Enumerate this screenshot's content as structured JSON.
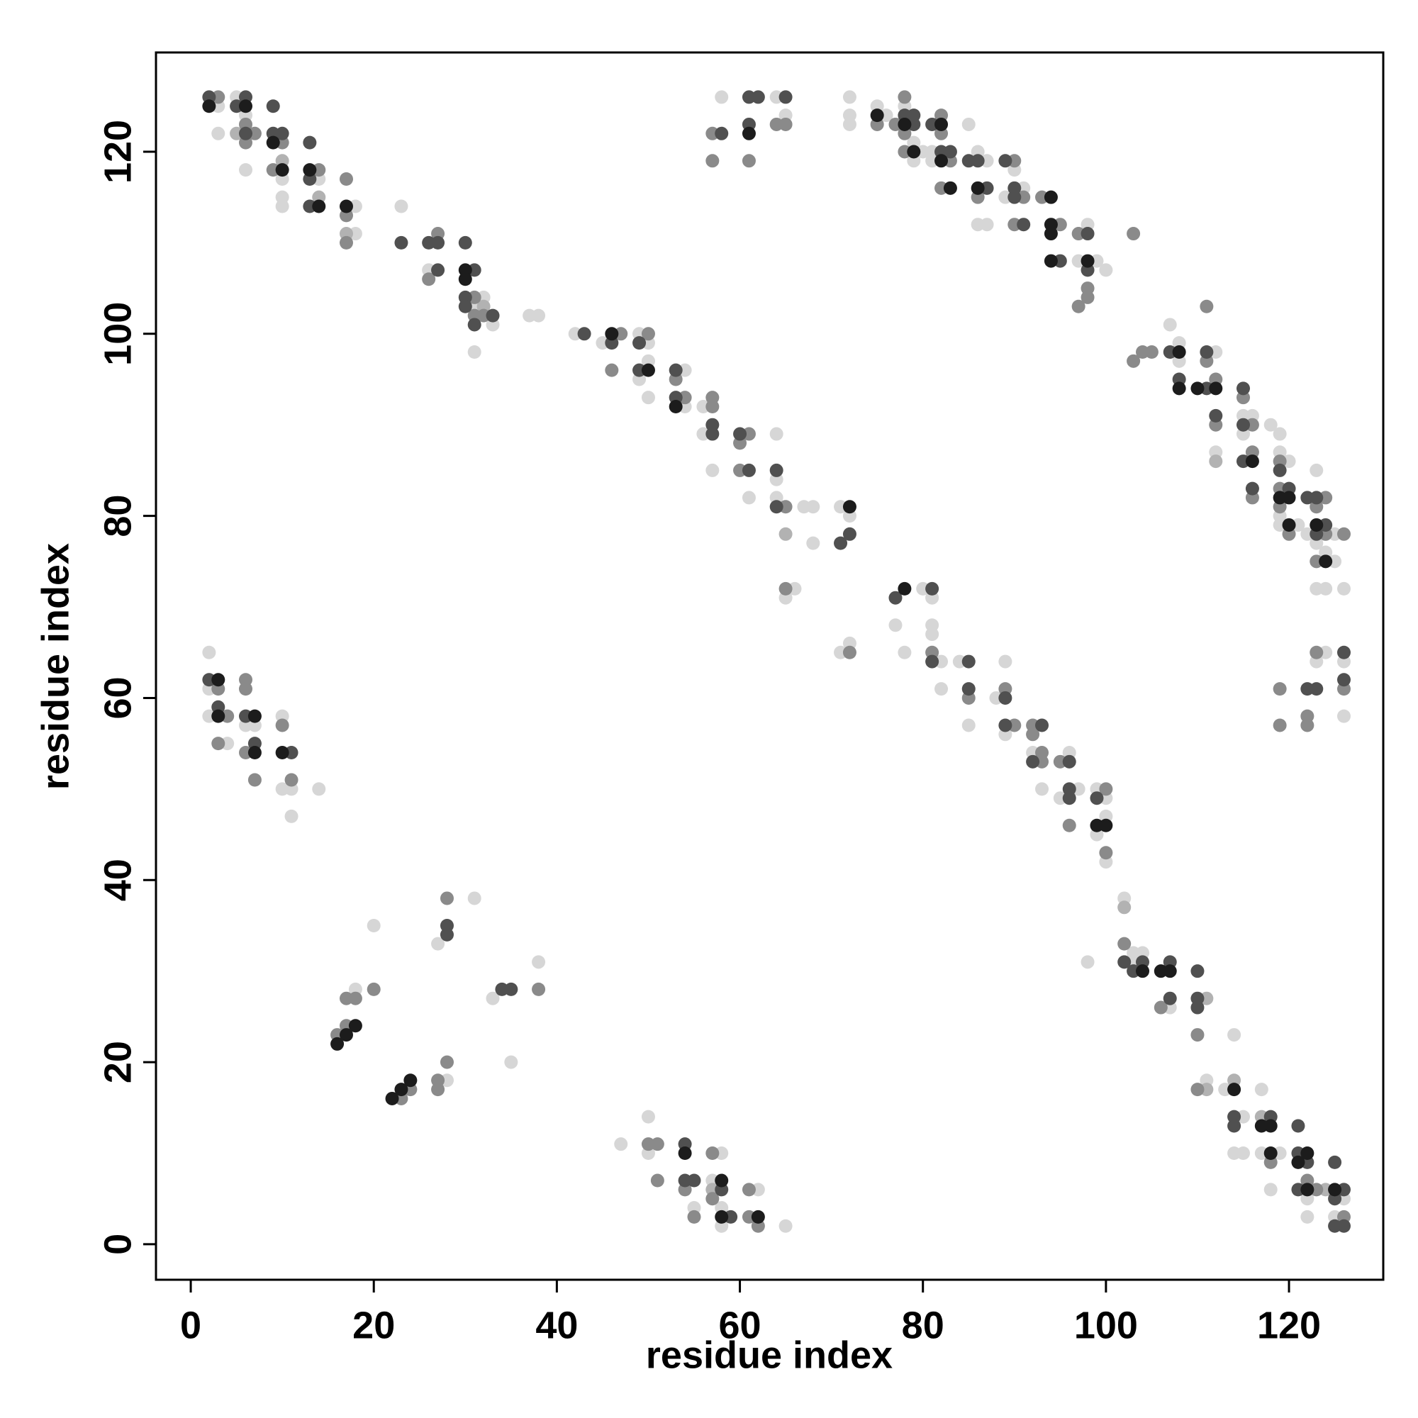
{
  "chart_data": {
    "type": "scatter",
    "xlabel": "residue index",
    "ylabel": "residue index",
    "xlim": [
      -3.8,
      130.3
    ],
    "ylim": [
      -3.9,
      130.9
    ],
    "xticks": [
      0,
      20,
      40,
      60,
      80,
      100,
      120
    ],
    "yticks": [
      0,
      20,
      40,
      60,
      80,
      100,
      120
    ],
    "grid": false,
    "series": [
      {
        "color": "#d6d6d6",
        "x": [
          3,
          3,
          5,
          6,
          6,
          10,
          10,
          10,
          14,
          18,
          18,
          23,
          26,
          31,
          31,
          32,
          33,
          37,
          38,
          42,
          45,
          49,
          49,
          50,
          50,
          50,
          54,
          54,
          56,
          56,
          57,
          61,
          64,
          64,
          64,
          65,
          66,
          67,
          68,
          68,
          71,
          72,
          71,
          72,
          77,
          78,
          80,
          81,
          81,
          81,
          82,
          82,
          84,
          85,
          88,
          89,
          89,
          92,
          93,
          95,
          96,
          97,
          99,
          99,
          100,
          100,
          100,
          98,
          102,
          103,
          103,
          104,
          107,
          111,
          113,
          114,
          114,
          115,
          115,
          117,
          117,
          118,
          119,
          122,
          122,
          125,
          126,
          58,
          64,
          65,
          72,
          72,
          72,
          75,
          76,
          78,
          79,
          79,
          80,
          81,
          81,
          85,
          86,
          86,
          87,
          87,
          89,
          90,
          91,
          97,
          98,
          99,
          100,
          107,
          108,
          108,
          112,
          112,
          115,
          115,
          116,
          118,
          119,
          119,
          119,
          119,
          120,
          121,
          122,
          123,
          123,
          123,
          124,
          124,
          125,
          125,
          126,
          123,
          124,
          126,
          126,
          2,
          2,
          2,
          4,
          6,
          7,
          10,
          10,
          11,
          11,
          14,
          18,
          20,
          27,
          28,
          31,
          33,
          35,
          38,
          47,
          50,
          50,
          55,
          57,
          58,
          58,
          58,
          62,
          65
        ],
        "values": [
          125,
          122,
          126,
          124,
          118,
          117,
          115,
          114,
          117,
          114,
          111,
          114,
          107,
          103,
          98,
          104,
          101,
          102,
          102,
          100,
          99,
          100,
          95,
          99,
          97,
          93,
          96,
          92,
          92,
          89,
          85,
          82,
          89,
          84,
          82,
          71,
          72,
          81,
          81,
          77,
          81,
          80,
          65,
          66,
          68,
          65,
          72,
          71,
          68,
          67,
          64,
          61,
          64,
          57,
          60,
          64,
          56,
          54,
          50,
          49,
          54,
          50,
          50,
          45,
          49,
          47,
          42,
          31,
          38,
          32,
          31,
          32,
          26,
          18,
          17,
          23,
          10,
          14,
          10,
          17,
          10,
          6,
          10,
          5,
          3,
          3,
          5,
          126,
          126,
          124,
          126,
          124,
          123,
          125,
          124,
          125,
          121,
          119,
          120,
          120,
          119,
          123,
          120,
          112,
          119,
          112,
          115,
          118,
          116,
          108,
          112,
          108,
          107,
          101,
          99,
          97,
          98,
          87,
          91,
          89,
          91,
          90,
          89,
          87,
          80,
          79,
          86,
          79,
          78,
          85,
          77,
          72,
          76,
          72,
          78,
          75,
          72,
          64,
          65,
          64,
          58,
          65,
          61,
          58,
          55,
          57,
          57,
          58,
          50,
          50,
          47,
          50,
          28,
          35,
          33,
          18,
          38,
          27,
          20,
          31,
          11,
          14,
          10,
          4,
          7,
          10,
          4,
          2,
          6,
          2
        ]
      },
      {
        "color": "#b2b2b2",
        "x": [
          5,
          10,
          14,
          17,
          32,
          65,
          102,
          111,
          111,
          114,
          117,
          124,
          112,
          57
        ],
        "values": [
          122,
          119,
          115,
          111,
          103,
          78,
          37,
          27,
          17,
          18,
          14,
          6,
          86,
          6
        ]
      },
      {
        "color": "#8a8a8a",
        "x": [
          3,
          6,
          6,
          7,
          9,
          10,
          14,
          17,
          17,
          17,
          26,
          27,
          31,
          31,
          32,
          46,
          47,
          50,
          53,
          54,
          57,
          57,
          60,
          60,
          61,
          65,
          65,
          72,
          81,
          85,
          89,
          90,
          92,
          92,
          93,
          93,
          95,
          96,
          100,
          100,
          102,
          106,
          110,
          110,
          118,
          122,
          123,
          126,
          57,
          57,
          61,
          64,
          65,
          75,
          77,
          78,
          78,
          78,
          82,
          82,
          82,
          83,
          86,
          90,
          90,
          91,
          93,
          95,
          97,
          97,
          98,
          98,
          103,
          103,
          104,
          105,
          111,
          111,
          112,
          112,
          115,
          116,
          116,
          116,
          119,
          119,
          119,
          120,
          123,
          123,
          124,
          124,
          126,
          119,
          119,
          122,
          122,
          123,
          126,
          3,
          3,
          4,
          6,
          6,
          6,
          7,
          10,
          11,
          16,
          17,
          17,
          18,
          20,
          23,
          24,
          27,
          27,
          28,
          28,
          38,
          50,
          51,
          51,
          54,
          55,
          57,
          57,
          61,
          61,
          62
        ],
        "values": [
          126,
          123,
          121,
          122,
          118,
          121,
          118,
          117,
          113,
          110,
          106,
          111,
          104,
          102,
          102,
          96,
          100,
          100,
          95,
          93,
          93,
          92,
          88,
          85,
          89,
          81,
          72,
          65,
          65,
          60,
          61,
          57,
          57,
          56,
          54,
          53,
          53,
          46,
          50,
          43,
          33,
          26,
          23,
          17,
          9,
          7,
          6,
          3,
          122,
          119,
          119,
          123,
          123,
          123,
          123,
          126,
          122,
          120,
          124,
          122,
          116,
          119,
          115,
          119,
          112,
          115,
          115,
          112,
          111,
          103,
          105,
          104,
          111,
          97,
          98,
          98,
          103,
          97,
          95,
          90,
          93,
          90,
          87,
          82,
          86,
          83,
          81,
          78,
          81,
          75,
          82,
          78,
          78,
          61,
          57,
          58,
          57,
          65,
          61,
          61,
          55,
          58,
          62,
          61,
          54,
          51,
          57,
          51,
          23,
          27,
          24,
          27,
          28,
          16,
          17,
          18,
          17,
          38,
          20,
          28,
          11,
          11,
          7,
          6,
          3,
          10,
          5,
          6,
          3,
          2
        ]
      },
      {
        "color": "#505050",
        "x": [
          2,
          5,
          6,
          6,
          9,
          9,
          10,
          13,
          13,
          13,
          23,
          26,
          27,
          27,
          30,
          30,
          30,
          31,
          31,
          33,
          43,
          46,
          49,
          49,
          53,
          53,
          57,
          57,
          60,
          61,
          64,
          64,
          71,
          72,
          77,
          81,
          81,
          85,
          85,
          89,
          89,
          92,
          93,
          96,
          96,
          96,
          99,
          102,
          103,
          104,
          107,
          107,
          110,
          110,
          110,
          114,
          114,
          118,
          121,
          121,
          121,
          122,
          125,
          125,
          125,
          126,
          126,
          58,
          61,
          61,
          62,
          65,
          78,
          79,
          79,
          81,
          82,
          83,
          85,
          86,
          87,
          89,
          90,
          90,
          91,
          95,
          98,
          98,
          107,
          108,
          111,
          111,
          112,
          115,
          115,
          115,
          116,
          119,
          120,
          122,
          123,
          123,
          124,
          122,
          123,
          126,
          126,
          2,
          3,
          6,
          7,
          11,
          28,
          28,
          34,
          35,
          54,
          54,
          55,
          58,
          59
        ],
        "values": [
          126,
          125,
          126,
          122,
          125,
          122,
          122,
          121,
          117,
          114,
          110,
          110,
          110,
          107,
          110,
          104,
          103,
          107,
          101,
          102,
          100,
          99,
          99,
          96,
          96,
          93,
          90,
          89,
          89,
          85,
          85,
          81,
          77,
          78,
          71,
          72,
          64,
          64,
          61,
          60,
          57,
          53,
          57,
          53,
          50,
          49,
          49,
          31,
          30,
          31,
          31,
          27,
          30,
          27,
          26,
          14,
          13,
          14,
          13,
          10,
          6,
          9,
          9,
          5,
          2,
          6,
          2,
          122,
          126,
          123,
          126,
          126,
          124,
          124,
          123,
          123,
          120,
          120,
          119,
          119,
          116,
          119,
          116,
          115,
          112,
          108,
          111,
          107,
          98,
          95,
          98,
          94,
          91,
          94,
          90,
          86,
          83,
          85,
          83,
          82,
          82,
          78,
          79,
          61,
          61,
          65,
          62,
          62,
          59,
          58,
          55,
          54,
          35,
          34,
          28,
          28,
          11,
          7,
          7,
          6,
          3
        ]
      },
      {
        "color": "#1c1c1c",
        "x": [
          2,
          6,
          9,
          10,
          13,
          14,
          17,
          30,
          30,
          46,
          50,
          53,
          72,
          78,
          99,
          100,
          104,
          106,
          107,
          114,
          117,
          118,
          118,
          121,
          122,
          122,
          125,
          61,
          75,
          78,
          79,
          82,
          82,
          83,
          86,
          94,
          94,
          94,
          94,
          98,
          108,
          108,
          110,
          112,
          116,
          119,
          120,
          120,
          123,
          124,
          3,
          3,
          7,
          7,
          10,
          16,
          17,
          18,
          22,
          23,
          24,
          54,
          58,
          58,
          62
        ],
        "values": [
          125,
          125,
          121,
          118,
          118,
          114,
          114,
          107,
          106,
          100,
          96,
          92,
          81,
          72,
          46,
          46,
          30,
          30,
          30,
          17,
          13,
          13,
          10,
          9,
          10,
          6,
          6,
          122,
          124,
          123,
          120,
          123,
          119,
          116,
          116,
          115,
          112,
          111,
          108,
          108,
          98,
          94,
          94,
          94,
          86,
          82,
          82,
          79,
          79,
          75,
          62,
          58,
          58,
          54,
          54,
          22,
          23,
          24,
          16,
          17,
          18,
          10,
          7,
          3,
          3
        ]
      }
    ]
  }
}
